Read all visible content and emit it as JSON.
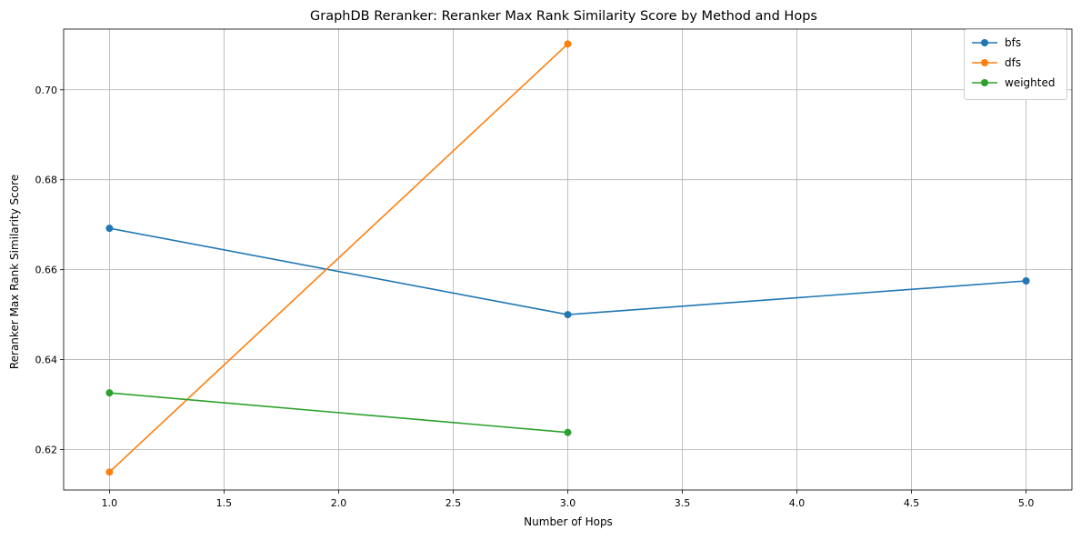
{
  "chart_data": {
    "type": "line",
    "title": "GraphDB Reranker: Reranker Max Rank Similarity Score by Method and Hops",
    "xlabel": "Number of Hops",
    "ylabel": "Reranker Max Rank Similarity Score",
    "xlim": [
      0.8,
      5.2
    ],
    "ylim": [
      0.611,
      0.7135
    ],
    "xticks": [
      "1.0",
      "1.5",
      "2.0",
      "2.5",
      "3.0",
      "3.5",
      "4.0",
      "4.5",
      "5.0"
    ],
    "yticks": [
      "0.62",
      "0.64",
      "0.66",
      "0.68",
      "0.70"
    ],
    "grid": true,
    "legend_position": "top-right",
    "series": [
      {
        "name": "bfs",
        "color": "#1f77b4",
        "x": [
          1,
          3,
          5
        ],
        "y": [
          0.6692,
          0.65,
          0.6575
        ]
      },
      {
        "name": "dfs",
        "color": "#ff7f0e",
        "x": [
          1,
          3
        ],
        "y": [
          0.615,
          0.7102
        ]
      },
      {
        "name": "weighted",
        "color": "#2ca02c",
        "x": [
          1,
          3
        ],
        "y": [
          0.6326,
          0.6238
        ]
      }
    ]
  }
}
